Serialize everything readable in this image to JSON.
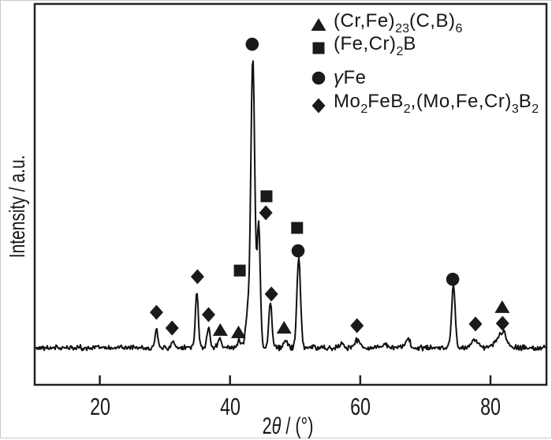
{
  "figure": {
    "kind": "XRD pattern",
    "frame_color": "#222222",
    "background": "#ffffff"
  },
  "legend": {
    "items": [
      {
        "marker": "triangle",
        "parts": [
          {
            "t": "(Cr,Fe)"
          },
          {
            "t": "23",
            "sub": true
          },
          {
            "t": "(C,B)"
          },
          {
            "t": "6",
            "sub": true
          }
        ]
      },
      {
        "marker": "square",
        "parts": [
          {
            "t": "(Fe,Cr)"
          },
          {
            "t": "2",
            "sub": true
          },
          {
            "t": "B"
          }
        ]
      },
      {
        "marker": "circle",
        "parts": [
          {
            "t": "γ",
            "italic": true
          },
          {
            "t": "Fe"
          }
        ]
      },
      {
        "marker": "diamond",
        "parts": [
          {
            "t": "Mo"
          },
          {
            "t": "2",
            "sub": true
          },
          {
            "t": "FeB"
          },
          {
            "t": "2",
            "sub": true
          },
          {
            "t": ",(Mo,Fe,Cr)"
          },
          {
            "t": "3",
            "sub": true
          },
          {
            "t": "B"
          },
          {
            "t": "2",
            "sub": true
          }
        ]
      }
    ]
  },
  "chart_data": {
    "type": "line",
    "title": "",
    "xlabel": "2θ / (°)",
    "xlabel_parts": {
      "prefix": "2",
      "theta": "θ",
      "suffix": " / (°)"
    },
    "ylabel": "Intensity / a.u.",
    "x_range": [
      10,
      88.6
    ],
    "x_ticks": [
      20,
      40,
      60,
      80
    ],
    "y_axis": "arbitrary units, no tick marks",
    "grid": false,
    "legend_position": "top-right-inside",
    "line_color": "#111111",
    "marker_color": "#1a1a1a",
    "frame_color": "#222222",
    "noise_amplitude": 1.1,
    "intensity_scale": "main peak = 100 a.u., baseline = 0",
    "peaks": [
      {
        "two_theta": 28.7,
        "intensity": 6.5,
        "width": 0.22,
        "markers": [
          "diamond"
        ]
      },
      {
        "two_theta": 31.2,
        "intensity": 2.6,
        "width": 0.25,
        "markers": [
          "diamond"
        ]
      },
      {
        "two_theta": 34.9,
        "intensity": 20.0,
        "width": 0.22,
        "markers": [
          "diamond"
        ]
      },
      {
        "two_theta": 36.7,
        "intensity": 7.0,
        "width": 0.22,
        "markers": [
          "diamond"
        ]
      },
      {
        "two_theta": 38.4,
        "intensity": 3.2,
        "width": 0.28,
        "markers": [
          "triangle"
        ]
      },
      {
        "two_theta": 41.4,
        "intensity": 2.8,
        "width": 0.28,
        "markers": [
          "triangle"
        ]
      },
      {
        "two_theta": 42.7,
        "intensity": 12.0,
        "width": 0.3,
        "markers": [
          "square"
        ]
      },
      {
        "two_theta": 43.5,
        "intensity": 100.0,
        "width": 0.3,
        "markers": [
          "circle"
        ]
      },
      {
        "two_theta": 44.4,
        "intensity": 42.0,
        "width": 0.24,
        "markers": [
          "square",
          "diamond"
        ]
      },
      {
        "two_theta": 46.2,
        "intensity": 15.5,
        "width": 0.24,
        "markers": [
          "diamond"
        ]
      },
      {
        "two_theta": 48.5,
        "intensity": 2.2,
        "width": 0.3,
        "markers": [
          "triangle"
        ]
      },
      {
        "two_theta": 50.55,
        "intensity": 30.5,
        "width": 0.28,
        "markers": [
          "square",
          "circle"
        ]
      },
      {
        "two_theta": 57.2,
        "intensity": 1.5,
        "width": 0.3,
        "markers": []
      },
      {
        "two_theta": 59.5,
        "intensity": 2.5,
        "width": 0.45,
        "markers": [
          "diamond"
        ]
      },
      {
        "two_theta": 63.8,
        "intensity": 1.2,
        "width": 0.4,
        "markers": []
      },
      {
        "two_theta": 67.3,
        "intensity": 3.0,
        "width": 0.35,
        "markers": []
      },
      {
        "two_theta": 74.3,
        "intensity": 21.0,
        "width": 0.28,
        "markers": [
          "circle"
        ]
      },
      {
        "two_theta": 77.6,
        "intensity": 3.0,
        "width": 0.5,
        "markers": [
          "diamond"
        ]
      },
      {
        "two_theta": 81.5,
        "intensity": 3.8,
        "width": 0.7,
        "markers": [
          "triangle",
          "diamond"
        ]
      },
      {
        "two_theta": 82.1,
        "intensity": 2.5,
        "width": 0.4,
        "markers": []
      }
    ],
    "annotations": [
      {
        "marker": "diamond",
        "two_theta": 28.7,
        "y": 12.2
      },
      {
        "marker": "diamond",
        "two_theta": 31.1,
        "y": 6.8
      },
      {
        "marker": "diamond",
        "two_theta": 35.0,
        "y": 24.5
      },
      {
        "marker": "diamond",
        "two_theta": 36.7,
        "y": 11.4
      },
      {
        "marker": "triangle",
        "two_theta": 38.5,
        "y": 6.0
      },
      {
        "marker": "triangle",
        "two_theta": 41.3,
        "y": 5.2
      },
      {
        "marker": "square",
        "two_theta": 41.5,
        "y": 26.6
      },
      {
        "marker": "circle",
        "two_theta": 43.4,
        "y": 104.6
      },
      {
        "marker": "diamond",
        "two_theta": 45.5,
        "y": 46.5
      },
      {
        "marker": "square",
        "two_theta": 45.6,
        "y": 52.2
      },
      {
        "marker": "diamond",
        "two_theta": 46.35,
        "y": 18.5
      },
      {
        "marker": "triangle",
        "two_theta": 48.3,
        "y": 6.8
      },
      {
        "marker": "square",
        "two_theta": 50.3,
        "y": 41.3
      },
      {
        "marker": "circle",
        "two_theta": 50.45,
        "y": 33.4
      },
      {
        "marker": "diamond",
        "two_theta": 59.5,
        "y": 7.6
      },
      {
        "marker": "circle",
        "two_theta": 74.2,
        "y": 23.6
      },
      {
        "marker": "diamond",
        "two_theta": 77.7,
        "y": 8.2
      },
      {
        "marker": "triangle",
        "two_theta": 81.8,
        "y": 13.9
      },
      {
        "marker": "diamond",
        "two_theta": 81.85,
        "y": 8.4
      }
    ],
    "x_tick_labels": [
      "20",
      "40",
      "60",
      "80"
    ]
  }
}
